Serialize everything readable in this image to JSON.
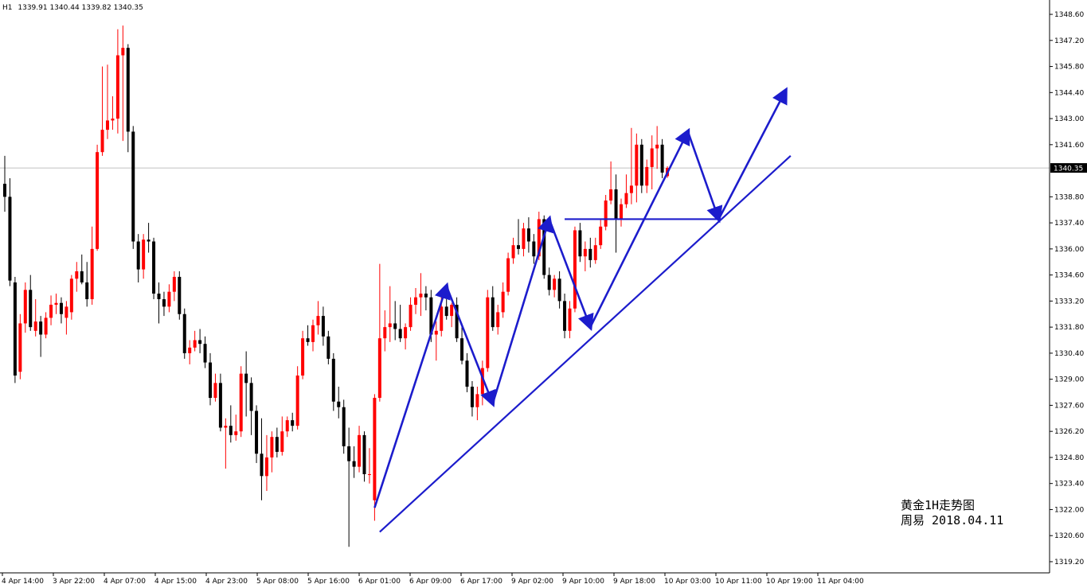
{
  "header": {
    "symbol_timeframe": "H1",
    "ohlc": "1339.91 1340.44 1339.82 1340.35"
  },
  "current_price_label": "1340.35",
  "annotation": {
    "line1": "黄金1H走势图",
    "line2": "周易  2018.04.11"
  },
  "colors": {
    "up": "#ff0000",
    "down": "#000000",
    "trend": "#1c1ccc",
    "grid": "#c0c0c0",
    "axis": "#000000",
    "price_line": "#c0c0c0",
    "price_label_bg": "#000000"
  },
  "chart_data": {
    "type": "candlestick",
    "title": "",
    "ylim": [
      1318.6,
      1349.2
    ],
    "y_ticks": [
      "1348.60",
      "1347.20",
      "1345.80",
      "1344.40",
      "1343.00",
      "1341.60",
      "1338.80",
      "1337.40",
      "1336.00",
      "1334.60",
      "1333.20",
      "1331.80",
      "1330.40",
      "1329.00",
      "1327.60",
      "1326.20",
      "1324.80",
      "1323.40",
      "1322.00",
      "1320.60",
      "1319.20"
    ],
    "x_tick_labels": [
      "4 Apr 14:00",
      "3 Apr 22:00",
      "4 Apr 07:00",
      "4 Apr 15:00",
      "4 Apr 23:00",
      "5 Apr 08:00",
      "5 Apr 16:00",
      "6 Apr 01:00",
      "6 Apr 09:00",
      "6 Apr 17:00",
      "9 Apr 02:00",
      "9 Apr 10:00",
      "9 Apr 18:00",
      "10 Apr 03:00",
      "10 Apr 11:00",
      "10 Apr 19:00",
      "11 Apr 04:00"
    ],
    "current_price": 1340.35,
    "candles": [
      {
        "o": 1339.5,
        "h": 1341.0,
        "l": 1338.0,
        "c": 1338.8
      },
      {
        "o": 1338.8,
        "h": 1339.8,
        "l": 1334.0,
        "c": 1334.3
      },
      {
        "o": 1334.2,
        "h": 1334.5,
        "l": 1328.8,
        "c": 1329.2
      },
      {
        "o": 1329.4,
        "h": 1332.5,
        "l": 1329.0,
        "c": 1332.0
      },
      {
        "o": 1332.0,
        "h": 1334.2,
        "l": 1331.5,
        "c": 1333.8
      },
      {
        "o": 1333.8,
        "h": 1334.6,
        "l": 1331.6,
        "c": 1331.8
      },
      {
        "o": 1331.6,
        "h": 1333.3,
        "l": 1331.3,
        "c": 1332.1
      },
      {
        "o": 1332.1,
        "h": 1332.4,
        "l": 1330.2,
        "c": 1331.4
      },
      {
        "o": 1331.4,
        "h": 1332.6,
        "l": 1331.2,
        "c": 1332.3
      },
      {
        "o": 1332.3,
        "h": 1333.5,
        "l": 1331.9,
        "c": 1333.0
      },
      {
        "o": 1333.0,
        "h": 1333.6,
        "l": 1332.5,
        "c": 1333.1
      },
      {
        "o": 1333.1,
        "h": 1333.4,
        "l": 1332.0,
        "c": 1332.5
      },
      {
        "o": 1332.3,
        "h": 1333.2,
        "l": 1331.4,
        "c": 1332.9
      },
      {
        "o": 1332.6,
        "h": 1334.6,
        "l": 1332.2,
        "c": 1334.4
      },
      {
        "o": 1334.4,
        "h": 1335.3,
        "l": 1333.7,
        "c": 1334.8
      },
      {
        "o": 1334.8,
        "h": 1335.7,
        "l": 1334.1,
        "c": 1334.2
      },
      {
        "o": 1334.2,
        "h": 1335.3,
        "l": 1332.9,
        "c": 1333.3
      },
      {
        "o": 1333.3,
        "h": 1337.2,
        "l": 1333.0,
        "c": 1336.0
      },
      {
        "o": 1336.0,
        "h": 1341.6,
        "l": 1335.9,
        "c": 1341.2
      },
      {
        "o": 1341.2,
        "h": 1345.8,
        "l": 1341.0,
        "c": 1342.4
      },
      {
        "o": 1342.4,
        "h": 1345.9,
        "l": 1341.9,
        "c": 1342.9
      },
      {
        "o": 1342.9,
        "h": 1344.2,
        "l": 1342.4,
        "c": 1343.0
      },
      {
        "o": 1343.0,
        "h": 1347.8,
        "l": 1342.2,
        "c": 1346.4
      },
      {
        "o": 1346.4,
        "h": 1348.0,
        "l": 1341.8,
        "c": 1346.8
      },
      {
        "o": 1346.8,
        "h": 1347.0,
        "l": 1341.2,
        "c": 1342.3
      },
      {
        "o": 1342.3,
        "h": 1342.6,
        "l": 1336.0,
        "c": 1336.4
      },
      {
        "o": 1336.4,
        "h": 1336.8,
        "l": 1334.2,
        "c": 1334.9
      },
      {
        "o": 1334.9,
        "h": 1336.8,
        "l": 1334.4,
        "c": 1336.5
      },
      {
        "o": 1336.5,
        "h": 1337.4,
        "l": 1335.8,
        "c": 1336.4
      },
      {
        "o": 1336.4,
        "h": 1336.6,
        "l": 1333.3,
        "c": 1333.6
      },
      {
        "o": 1333.6,
        "h": 1334.2,
        "l": 1332.0,
        "c": 1333.3
      },
      {
        "o": 1333.3,
        "h": 1333.7,
        "l": 1332.4,
        "c": 1332.9
      },
      {
        "o": 1332.9,
        "h": 1334.1,
        "l": 1332.6,
        "c": 1333.7
      },
      {
        "o": 1333.7,
        "h": 1334.8,
        "l": 1333.2,
        "c": 1334.5
      },
      {
        "o": 1334.5,
        "h": 1334.8,
        "l": 1332.2,
        "c": 1332.5
      },
      {
        "o": 1332.5,
        "h": 1332.8,
        "l": 1330.1,
        "c": 1330.4
      },
      {
        "o": 1330.4,
        "h": 1331.1,
        "l": 1329.8,
        "c": 1330.7
      },
      {
        "o": 1330.7,
        "h": 1331.6,
        "l": 1330.5,
        "c": 1331.1
      },
      {
        "o": 1331.1,
        "h": 1331.7,
        "l": 1330.4,
        "c": 1330.9
      },
      {
        "o": 1330.9,
        "h": 1331.3,
        "l": 1329.6,
        "c": 1329.9
      },
      {
        "o": 1329.9,
        "h": 1330.4,
        "l": 1327.6,
        "c": 1328.0
      },
      {
        "o": 1328.0,
        "h": 1329.3,
        "l": 1327.8,
        "c": 1328.8
      },
      {
        "o": 1328.8,
        "h": 1329.3,
        "l": 1326.2,
        "c": 1326.4
      },
      {
        "o": 1326.4,
        "h": 1326.9,
        "l": 1324.2,
        "c": 1326.5
      },
      {
        "o": 1326.5,
        "h": 1327.6,
        "l": 1325.6,
        "c": 1326.0
      },
      {
        "o": 1326.0,
        "h": 1327.1,
        "l": 1325.7,
        "c": 1326.2
      },
      {
        "o": 1326.2,
        "h": 1329.7,
        "l": 1325.9,
        "c": 1329.3
      },
      {
        "o": 1329.3,
        "h": 1330.5,
        "l": 1327.0,
        "c": 1328.8
      },
      {
        "o": 1328.8,
        "h": 1329.1,
        "l": 1326.0,
        "c": 1327.3
      },
      {
        "o": 1327.3,
        "h": 1327.6,
        "l": 1324.5,
        "c": 1325.0
      },
      {
        "o": 1325.0,
        "h": 1326.9,
        "l": 1322.5,
        "c": 1323.8
      },
      {
        "o": 1323.8,
        "h": 1326.0,
        "l": 1323.0,
        "c": 1324.8
      },
      {
        "o": 1324.8,
        "h": 1326.2,
        "l": 1324.0,
        "c": 1325.9
      },
      {
        "o": 1325.9,
        "h": 1326.4,
        "l": 1324.8,
        "c": 1325.1
      },
      {
        "o": 1325.1,
        "h": 1327.0,
        "l": 1324.9,
        "c": 1326.2
      },
      {
        "o": 1326.2,
        "h": 1327.0,
        "l": 1325.9,
        "c": 1326.8
      },
      {
        "o": 1326.8,
        "h": 1327.2,
        "l": 1326.2,
        "c": 1326.5
      },
      {
        "o": 1326.5,
        "h": 1329.7,
        "l": 1326.3,
        "c": 1329.2
      },
      {
        "o": 1329.2,
        "h": 1331.6,
        "l": 1329.0,
        "c": 1331.2
      },
      {
        "o": 1331.2,
        "h": 1331.9,
        "l": 1330.8,
        "c": 1331.0
      },
      {
        "o": 1331.0,
        "h": 1332.2,
        "l": 1330.5,
        "c": 1331.9
      },
      {
        "o": 1331.9,
        "h": 1333.2,
        "l": 1331.4,
        "c": 1332.4
      },
      {
        "o": 1332.4,
        "h": 1332.9,
        "l": 1330.8,
        "c": 1331.3
      },
      {
        "o": 1331.3,
        "h": 1331.6,
        "l": 1329.8,
        "c": 1330.1
      },
      {
        "o": 1330.1,
        "h": 1330.4,
        "l": 1327.3,
        "c": 1327.8
      },
      {
        "o": 1327.8,
        "h": 1328.6,
        "l": 1326.9,
        "c": 1327.5
      },
      {
        "o": 1327.5,
        "h": 1327.9,
        "l": 1325.0,
        "c": 1325.4
      },
      {
        "o": 1325.4,
        "h": 1326.4,
        "l": 1320.0,
        "c": 1324.6
      },
      {
        "o": 1324.6,
        "h": 1325.4,
        "l": 1323.7,
        "c": 1324.3
      },
      {
        "o": 1324.3,
        "h": 1326.5,
        "l": 1324.0,
        "c": 1326.0
      },
      {
        "o": 1326.0,
        "h": 1326.2,
        "l": 1323.5,
        "c": 1323.9
      },
      {
        "o": 1323.9,
        "h": 1325.3,
        "l": 1323.4,
        "c": 1323.9
      },
      {
        "o": 1322.5,
        "h": 1328.2,
        "l": 1321.4,
        "c": 1328.0
      },
      {
        "o": 1328.0,
        "h": 1335.2,
        "l": 1327.8,
        "c": 1331.2
      },
      {
        "o": 1331.2,
        "h": 1332.7,
        "l": 1330.5,
        "c": 1331.8
      },
      {
        "o": 1331.8,
        "h": 1334.0,
        "l": 1331.0,
        "c": 1332.0
      },
      {
        "o": 1332.0,
        "h": 1333.2,
        "l": 1331.1,
        "c": 1331.7
      },
      {
        "o": 1331.7,
        "h": 1333.0,
        "l": 1331.0,
        "c": 1331.2
      },
      {
        "o": 1331.2,
        "h": 1332.0,
        "l": 1330.6,
        "c": 1331.8
      },
      {
        "o": 1331.8,
        "h": 1333.4,
        "l": 1331.6,
        "c": 1333.0
      },
      {
        "o": 1333.0,
        "h": 1333.9,
        "l": 1332.5,
        "c": 1333.4
      },
      {
        "o": 1333.4,
        "h": 1334.7,
        "l": 1332.4,
        "c": 1333.6
      },
      {
        "o": 1333.6,
        "h": 1334.0,
        "l": 1332.7,
        "c": 1333.4
      },
      {
        "o": 1333.4,
        "h": 1333.8,
        "l": 1331.0,
        "c": 1331.4
      },
      {
        "o": 1331.4,
        "h": 1332.1,
        "l": 1330.0,
        "c": 1331.6
      },
      {
        "o": 1331.6,
        "h": 1333.5,
        "l": 1331.3,
        "c": 1332.9
      },
      {
        "o": 1332.9,
        "h": 1333.3,
        "l": 1332.2,
        "c": 1332.4
      },
      {
        "o": 1332.4,
        "h": 1333.1,
        "l": 1331.8,
        "c": 1333.0
      },
      {
        "o": 1333.0,
        "h": 1333.4,
        "l": 1331.0,
        "c": 1331.2
      },
      {
        "o": 1331.2,
        "h": 1331.8,
        "l": 1329.8,
        "c": 1330.0
      },
      {
        "o": 1330.0,
        "h": 1330.4,
        "l": 1328.3,
        "c": 1328.6
      },
      {
        "o": 1328.6,
        "h": 1328.9,
        "l": 1327.0,
        "c": 1327.5
      },
      {
        "o": 1327.5,
        "h": 1328.6,
        "l": 1326.8,
        "c": 1328.2
      },
      {
        "o": 1328.2,
        "h": 1330.0,
        "l": 1327.6,
        "c": 1329.6
      },
      {
        "o": 1329.6,
        "h": 1333.8,
        "l": 1329.4,
        "c": 1333.4
      },
      {
        "o": 1333.4,
        "h": 1334.0,
        "l": 1331.6,
        "c": 1331.8
      },
      {
        "o": 1331.8,
        "h": 1333.0,
        "l": 1331.4,
        "c": 1332.6
      },
      {
        "o": 1332.6,
        "h": 1334.2,
        "l": 1332.3,
        "c": 1333.7
      },
      {
        "o": 1333.7,
        "h": 1335.8,
        "l": 1333.5,
        "c": 1335.5
      },
      {
        "o": 1335.5,
        "h": 1336.6,
        "l": 1335.2,
        "c": 1336.2
      },
      {
        "o": 1336.2,
        "h": 1337.6,
        "l": 1335.7,
        "c": 1336.0
      },
      {
        "o": 1336.0,
        "h": 1337.4,
        "l": 1335.6,
        "c": 1337.1
      },
      {
        "o": 1337.1,
        "h": 1337.7,
        "l": 1335.8,
        "c": 1336.4
      },
      {
        "o": 1336.4,
        "h": 1336.8,
        "l": 1335.2,
        "c": 1335.6
      },
      {
        "o": 1335.6,
        "h": 1338.0,
        "l": 1335.4,
        "c": 1337.6
      },
      {
        "o": 1337.6,
        "h": 1337.8,
        "l": 1334.4,
        "c": 1334.6
      },
      {
        "o": 1334.6,
        "h": 1335.0,
        "l": 1333.5,
        "c": 1333.8
      },
      {
        "o": 1333.8,
        "h": 1334.6,
        "l": 1333.4,
        "c": 1334.4
      },
      {
        "o": 1334.4,
        "h": 1334.8,
        "l": 1332.8,
        "c": 1333.2
      },
      {
        "o": 1333.2,
        "h": 1333.6,
        "l": 1331.2,
        "c": 1331.6
      },
      {
        "o": 1331.6,
        "h": 1333.2,
        "l": 1331.2,
        "c": 1332.8
      },
      {
        "o": 1332.8,
        "h": 1337.2,
        "l": 1332.6,
        "c": 1337.0
      },
      {
        "o": 1337.0,
        "h": 1337.4,
        "l": 1335.3,
        "c": 1335.6
      },
      {
        "o": 1335.6,
        "h": 1336.4,
        "l": 1334.8,
        "c": 1336.0
      },
      {
        "o": 1336.0,
        "h": 1336.6,
        "l": 1335.0,
        "c": 1335.4
      },
      {
        "o": 1335.4,
        "h": 1336.6,
        "l": 1335.2,
        "c": 1336.2
      },
      {
        "o": 1336.2,
        "h": 1337.6,
        "l": 1336.0,
        "c": 1337.2
      },
      {
        "o": 1337.2,
        "h": 1338.9,
        "l": 1337.0,
        "c": 1338.6
      },
      {
        "o": 1338.6,
        "h": 1340.7,
        "l": 1338.4,
        "c": 1339.2
      },
      {
        "o": 1339.2,
        "h": 1340.0,
        "l": 1335.8,
        "c": 1337.6
      },
      {
        "o": 1337.6,
        "h": 1338.7,
        "l": 1337.2,
        "c": 1338.4
      },
      {
        "o": 1338.4,
        "h": 1340.0,
        "l": 1338.2,
        "c": 1339.0
      },
      {
        "o": 1339.0,
        "h": 1342.5,
        "l": 1338.4,
        "c": 1339.4
      },
      {
        "o": 1339.4,
        "h": 1342.2,
        "l": 1338.5,
        "c": 1341.6
      },
      {
        "o": 1341.6,
        "h": 1341.9,
        "l": 1339.0,
        "c": 1339.4
      },
      {
        "o": 1339.4,
        "h": 1340.8,
        "l": 1339.0,
        "c": 1340.4
      },
      {
        "o": 1340.4,
        "h": 1342.1,
        "l": 1339.2,
        "c": 1341.4
      },
      {
        "o": 1341.4,
        "h": 1342.6,
        "l": 1340.3,
        "c": 1341.6
      },
      {
        "o": 1341.6,
        "h": 1341.9,
        "l": 1339.8,
        "c": 1340.1
      },
      {
        "o": 1339.91,
        "h": 1340.44,
        "l": 1339.82,
        "c": 1340.35
      }
    ],
    "trend_lines": [
      {
        "kind": "trendline",
        "x1": 1327.0,
        "y1": 1320.8,
        "x2": 1329.0,
        "y2": 1341.0,
        "from_idx": 73,
        "to_idx": 153
      },
      {
        "kind": "horizontal",
        "y": 1337.6,
        "from_idx": 109,
        "to_idx": 139
      },
      {
        "kind": "zigzag",
        "points": [
          [
            72,
            1322.1
          ],
          [
            86,
            1334.0
          ],
          [
            95,
            1327.7
          ],
          [
            106,
            1337.6
          ],
          [
            114,
            1331.8
          ],
          [
            133,
            1342.3
          ],
          [
            139,
            1337.6
          ]
        ]
      },
      {
        "kind": "arrow",
        "points": [
          [
            139,
            1337.6
          ],
          [
            152,
            1344.5
          ]
        ]
      }
    ]
  }
}
